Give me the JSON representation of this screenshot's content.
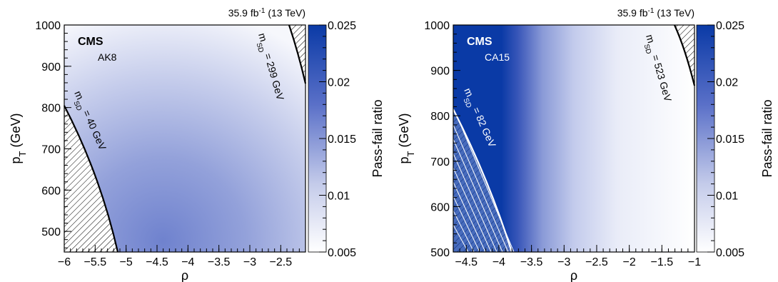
{
  "chart_data": [
    {
      "type": "heatmap",
      "lumi_label": "35.9 fb",
      "lumi_sup": "-1",
      "energy_label": "(13 TeV)",
      "experiment": "CMS",
      "jet_label": "AK8",
      "xlabel": "ρ",
      "ylabel_main": "p",
      "ylabel_sub": "T",
      "ylabel_unit": "(GeV)",
      "zlabel": "Pass-fail ratio",
      "xlim": [
        -6.0,
        -2.1
      ],
      "ylim": [
        450,
        1000
      ],
      "zlim": [
        0.005,
        0.025
      ],
      "xticks": [
        -6,
        -5.5,
        -5,
        -4.5,
        -4,
        -3.5,
        -3,
        -2.5
      ],
      "xtick_labels": [
        "−6",
        "−5.5",
        "−5",
        "−4.5",
        "−4",
        "−3.5",
        "−3",
        "−2.5"
      ],
      "yticks": [
        500,
        600,
        700,
        800,
        900,
        1000
      ],
      "ytick_labels": [
        "500",
        "600",
        "700",
        "800",
        "900",
        "1000"
      ],
      "zticks": [
        0.005,
        0.01,
        0.015,
        0.02,
        0.025
      ],
      "ztick_labels": [
        "0.005",
        "0.01",
        "0.015",
        "0.02",
        "0.025"
      ],
      "surface": {
        "center_rho": -4.5,
        "center_pt": 470,
        "peak_ratio": 0.0118,
        "falloff": "toward high ρ and high pT"
      },
      "boundary_curves": [
        {
          "label_main": "m",
          "label_sub": "SD",
          "label_rest": " = 40 GeV",
          "mass": 40,
          "side": "low-ρ"
        },
        {
          "label_main": "m",
          "label_sub": "SD",
          "label_rest": " = 299 GeV",
          "mass": 299,
          "side": "high-ρ"
        }
      ]
    },
    {
      "type": "heatmap",
      "lumi_label": "35.9 fb",
      "lumi_sup": "-1",
      "energy_label": "(13 TeV)",
      "experiment": "CMS",
      "jet_label": "CA15",
      "xlabel": "ρ",
      "ylabel_main": "p",
      "ylabel_sub": "T",
      "ylabel_unit": "(GeV)",
      "zlabel": "Pass-fail ratio",
      "xlim": [
        -4.7,
        -1.0
      ],
      "ylim": [
        500,
        1000
      ],
      "zlim": [
        0.005,
        0.025
      ],
      "xticks": [
        -4.5,
        -4,
        -3.5,
        -3,
        -2.5,
        -2,
        -1.5,
        -1
      ],
      "xtick_labels": [
        "−4.5",
        "−4",
        "−3.5",
        "−3",
        "−2.5",
        "−2",
        "−1.5",
        "−1"
      ],
      "yticks": [
        500,
        600,
        700,
        800,
        900,
        1000
      ],
      "ytick_labels": [
        "500",
        "600",
        "700",
        "800",
        "900",
        "1000"
      ],
      "zticks": [
        0.005,
        0.01,
        0.015,
        0.02,
        0.025
      ],
      "ztick_labels": [
        "0.005",
        "0.01",
        "0.015",
        "0.02",
        "0.025"
      ],
      "surface": {
        "saturated_below_rho": -4.1,
        "peak_ratio": 0.025,
        "falloff": "toward high ρ"
      },
      "boundary_curves": [
        {
          "label_main": "m",
          "label_sub": "SD",
          "label_rest": " = 82 GeV",
          "mass": 82,
          "side": "low-ρ"
        },
        {
          "label_main": "m",
          "label_sub": "SD",
          "label_rest": " = 523 GeV",
          "mass": 523,
          "side": "high-ρ"
        }
      ]
    }
  ]
}
